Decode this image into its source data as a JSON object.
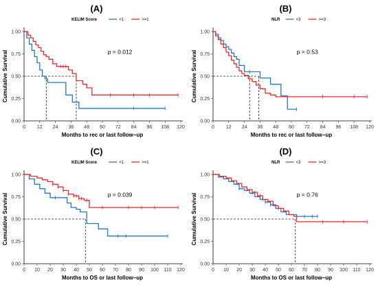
{
  "chart_data": [
    {
      "type": "line",
      "panel_label": "(A)",
      "legend_title": "KELIM Score",
      "legend_position": "top",
      "xlabel": "Months to rec or last follow−up",
      "ylabel": "Cumulative Survival",
      "xlim": [
        0,
        120
      ],
      "ylim": [
        0,
        1
      ],
      "xticks": [
        "0",
        "12",
        "24",
        "36",
        "48",
        "60",
        "72",
        "84",
        "96",
        "108",
        "120"
      ],
      "yticks": [
        "0.00",
        "0.25",
        "0.50",
        "0.75",
        "1.00"
      ],
      "grid": false,
      "p_value": "p = 0.012",
      "median_lines": [
        17,
        40
      ],
      "series": [
        {
          "name": "<1",
          "color": "#1f77c9",
          "x": [
            0,
            2,
            4,
            6,
            8,
            10,
            12,
            14,
            16,
            18,
            21,
            24,
            28,
            32,
            37,
            42,
            84,
            108
          ],
          "y": [
            1.0,
            0.93,
            0.86,
            0.79,
            0.72,
            0.65,
            0.57,
            0.5,
            0.47,
            0.43,
            0.43,
            0.43,
            0.43,
            0.29,
            0.21,
            0.14,
            0.14,
            0.14
          ],
          "censor": [
            84,
            108
          ]
        },
        {
          "name": ">=1",
          "color": "#e8292b",
          "x": [
            0,
            3,
            5,
            7,
            9,
            11,
            13,
            15,
            17,
            19,
            22,
            25,
            28,
            34,
            37,
            40,
            45,
            48,
            52,
            66,
            84,
            96,
            118
          ],
          "y": [
            1.0,
            0.96,
            0.93,
            0.89,
            0.85,
            0.82,
            0.78,
            0.74,
            0.72,
            0.69,
            0.64,
            0.61,
            0.61,
            0.57,
            0.53,
            0.45,
            0.41,
            0.37,
            0.29,
            0.29,
            0.29,
            0.29,
            0.29
          ],
          "censor": [
            28,
            30,
            32,
            66,
            84,
            96,
            118
          ]
        }
      ]
    },
    {
      "type": "line",
      "panel_label": "(B)",
      "legend_title": "NLR",
      "legend_position": "top",
      "xlabel": "Months to rec or last follow−up",
      "ylabel": "Cumulative Survival",
      "xlim": [
        0,
        120
      ],
      "ylim": [
        0,
        1
      ],
      "xticks": [
        "0",
        "12",
        "24",
        "36",
        "48",
        "60",
        "72",
        "84",
        "96",
        "108",
        "120"
      ],
      "yticks": [
        "0.00",
        "0.25",
        "0.50",
        "0.75",
        "1.00"
      ],
      "grid": false,
      "p_value": "p = 0.53",
      "median_lines": [
        28,
        35
      ],
      "series": [
        {
          "name": "<3",
          "color": "#1f77c9",
          "x": [
            0,
            2,
            4,
            6,
            8,
            10,
            12,
            14,
            16,
            18,
            20,
            24,
            28,
            36,
            44,
            52,
            57,
            64
          ],
          "y": [
            1.0,
            0.97,
            0.93,
            0.9,
            0.86,
            0.83,
            0.8,
            0.76,
            0.72,
            0.69,
            0.62,
            0.55,
            0.55,
            0.48,
            0.41,
            0.28,
            0.13,
            0.13
          ],
          "censor": [
            28,
            64
          ]
        },
        {
          "name": ">=3",
          "color": "#e8292b",
          "x": [
            0,
            2,
            4,
            6,
            8,
            10,
            12,
            14,
            16,
            18,
            20,
            22,
            24,
            27,
            30,
            33,
            36,
            40,
            44,
            48,
            84,
            108,
            118
          ],
          "y": [
            1.0,
            0.95,
            0.91,
            0.86,
            0.82,
            0.77,
            0.73,
            0.68,
            0.64,
            0.6,
            0.56,
            0.53,
            0.51,
            0.47,
            0.44,
            0.4,
            0.36,
            0.31,
            0.29,
            0.27,
            0.27,
            0.27,
            0.27
          ],
          "censor": [
            84,
            108,
            118
          ]
        }
      ]
    },
    {
      "type": "line",
      "panel_label": "(C)",
      "legend_title": "KELIM Score",
      "legend_position": "top",
      "xlabel": "Months to OS or last follow−up",
      "ylabel": "Cumulative Survival",
      "xlim": [
        0,
        120
      ],
      "ylim": [
        0,
        1
      ],
      "xticks": [
        "0",
        "10",
        "20",
        "30",
        "40",
        "50",
        "60",
        "70",
        "80",
        "90",
        "100",
        "110",
        "120"
      ],
      "yticks": [
        "0.00",
        "0.25",
        "0.50",
        "0.75",
        "1.00"
      ],
      "grid": false,
      "p_value": "p = 0.039",
      "median_lines": [
        47
      ],
      "series": [
        {
          "name": "<1",
          "color": "#1f77c9",
          "x": [
            0,
            4,
            8,
            12,
            16,
            20,
            28,
            33,
            36,
            40,
            43,
            48,
            52,
            57,
            61,
            64,
            72,
            78,
            110
          ],
          "y": [
            1.0,
            0.95,
            0.89,
            0.84,
            0.79,
            0.74,
            0.74,
            0.68,
            0.63,
            0.61,
            0.58,
            0.45,
            0.45,
            0.39,
            0.39,
            0.31,
            0.31,
            0.31,
            0.31
          ],
          "censor": [
            24,
            72,
            78,
            110
          ]
        },
        {
          "name": ">=1",
          "color": "#e8292b",
          "x": [
            0,
            5,
            10,
            14,
            18,
            22,
            26,
            30,
            34,
            38,
            42,
            46,
            50,
            60,
            80,
            90,
            100,
            118
          ],
          "y": [
            1.0,
            0.98,
            0.96,
            0.94,
            0.92,
            0.89,
            0.86,
            0.82,
            0.78,
            0.76,
            0.73,
            0.71,
            0.63,
            0.63,
            0.63,
            0.63,
            0.63,
            0.63
          ],
          "censor": [
            22,
            26,
            30,
            34,
            38,
            40,
            42,
            44,
            48,
            60,
            80,
            90,
            100,
            118
          ]
        }
      ]
    },
    {
      "type": "line",
      "panel_label": "(D)",
      "legend_title": "NLR",
      "legend_position": "top",
      "xlabel": "Months to OS or last follow−up",
      "ylabel": "Cumulative Survival",
      "xlim": [
        0,
        120
      ],
      "ylim": [
        0,
        1
      ],
      "xticks": [
        "0",
        "10",
        "20",
        "30",
        "40",
        "50",
        "60",
        "70",
        "80",
        "90",
        "100",
        "110",
        "120"
      ],
      "yticks": [
        "0.00",
        "0.25",
        "0.50",
        "0.75",
        "1.00"
      ],
      "grid": false,
      "p_value": "p = 0.76",
      "median_lines": [
        63
      ],
      "series": [
        {
          "name": "<3",
          "color": "#1f77c9",
          "x": [
            0,
            4,
            8,
            12,
            16,
            20,
            24,
            28,
            32,
            36,
            40,
            44,
            48,
            52,
            56,
            60,
            64,
            70,
            76,
            80
          ],
          "y": [
            1.0,
            0.97,
            0.95,
            0.92,
            0.89,
            0.84,
            0.82,
            0.79,
            0.75,
            0.72,
            0.69,
            0.66,
            0.62,
            0.58,
            0.55,
            0.55,
            0.53,
            0.53,
            0.53,
            0.53
          ],
          "censor": [
            20,
            30,
            38,
            40,
            44,
            70,
            76,
            80
          ]
        },
        {
          "name": ">=3",
          "color": "#e8292b",
          "x": [
            0,
            5,
            10,
            14,
            18,
            22,
            26,
            30,
            34,
            38,
            42,
            46,
            50,
            54,
            58,
            62,
            64,
            84,
            100,
            118
          ],
          "y": [
            1.0,
            0.98,
            0.96,
            0.93,
            0.9,
            0.86,
            0.83,
            0.8,
            0.76,
            0.72,
            0.7,
            0.65,
            0.62,
            0.59,
            0.55,
            0.53,
            0.47,
            0.47,
            0.47,
            0.47
          ],
          "censor": [
            26,
            32,
            36,
            42,
            50,
            84,
            100,
            118
          ]
        }
      ]
    }
  ]
}
